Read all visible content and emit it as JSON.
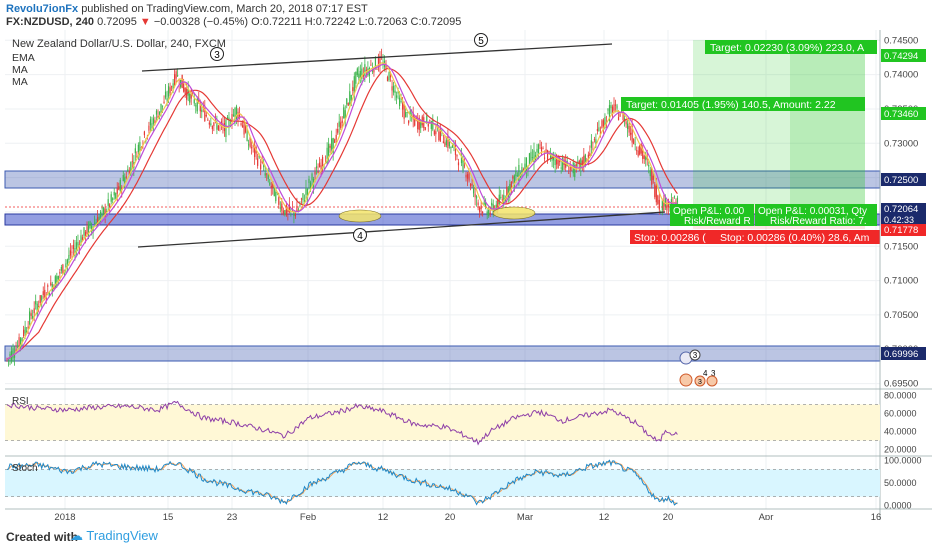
{
  "header": {
    "author": "Revolu7ionFx",
    "published": "published on TradingView.com, March 20, 2018 07:17 EST",
    "symbol": "FX:NZDUSD, 240",
    "last": "0.72095",
    "change": "−0.00328 (−0.45%)",
    "ohlc": "O:0.72211 H:0.72242 L:0.72063 C:0.72095"
  },
  "legend": {
    "title": "New Zealand Dollar/U.S. Dollar, 240, FXCM",
    "ema": "EMA",
    "ma1": "MA",
    "ma2": "MA"
  },
  "colors": {
    "up": "#3cb44b",
    "down": "#e53935",
    "ema": "#e53935",
    "ma_fast": "#c04bd9",
    "ma_mid": "#f2c94c",
    "zone": "#3b5ab0",
    "target": "#21c521",
    "stop": "#f02828",
    "rsi_line": "#8e3fa8",
    "stoch_k": "#1e88c8",
    "stoch_d": "#f7a35c"
  },
  "annotations": {
    "wave3": "3",
    "wave4": "4",
    "wave5": "5",
    "target1": "Target: 0.02230 (3.09%) 223.0, A",
    "target2": "Target: 0.01405 (1.95%) 140.5, Amount: 2.22",
    "open_pl1": "Open P&L: 0.00",
    "rr1": "Risk/Reward R",
    "open_pl2": "Open P&L: 0.00031, Qty",
    "rr2": "Risk/Reward Ratio: 7.",
    "stop1": "Stop: 0.00286 (",
    "stop2": "Stop: 0.00286 (0.40%) 28.6, Am",
    "event1": "3",
    "event2": "4",
    "event3": "3",
    "event4": "3"
  },
  "price_badges": {
    "p1": "0.74294",
    "p2": "0.73460",
    "p3": "0.72500",
    "p4": "0.72064",
    "p5": "0.42:33",
    "p6": "0.71778",
    "p7": "0.69996"
  },
  "indicators": {
    "rsi_label": "RSI",
    "stoch_label": "Stoch"
  },
  "footer": {
    "created": "Created with",
    "brand": "TradingView"
  },
  "chart_data": {
    "type": "line",
    "main": {
      "y_ticks": [
        0.745,
        0.74,
        0.735,
        0.73,
        0.725,
        0.72,
        0.715,
        0.71,
        0.705,
        0.7,
        0.695
      ],
      "y_tick_labels": [
        "0.74500",
        "0.74000",
        "0.73500",
        "0.73000",
        "0.72500",
        "0.72000",
        "0.71500",
        "0.71000",
        "0.70500",
        "0.70000",
        "0.69500"
      ],
      "ylim": [
        0.6945,
        0.7465
      ],
      "x_tick_labels": [
        "2018",
        "15",
        "23",
        "Feb",
        "12",
        "20",
        "Mar",
        "12",
        "20",
        "Apr",
        "16"
      ],
      "close_anchors": [
        [
          0,
          0.6985
        ],
        [
          8,
          0.701
        ],
        [
          16,
          0.705
        ],
        [
          24,
          0.708
        ],
        [
          32,
          0.71
        ],
        [
          40,
          0.713
        ],
        [
          48,
          0.716
        ],
        [
          56,
          0.718
        ],
        [
          64,
          0.72
        ],
        [
          72,
          0.7225
        ],
        [
          80,
          0.726
        ],
        [
          88,
          0.73
        ],
        [
          96,
          0.733
        ],
        [
          104,
          0.736
        ],
        [
          112,
          0.74
        ],
        [
          120,
          0.737
        ],
        [
          128,
          0.735
        ],
        [
          136,
          0.733
        ],
        [
          144,
          0.732
        ],
        [
          152,
          0.735
        ],
        [
          160,
          0.73
        ],
        [
          168,
          0.727
        ],
        [
          176,
          0.723
        ],
        [
          184,
          0.72
        ],
        [
          192,
          0.72
        ],
        [
          200,
          0.724
        ],
        [
          208,
          0.727
        ],
        [
          216,
          0.73
        ],
        [
          224,
          0.735
        ],
        [
          232,
          0.74
        ],
        [
          240,
          0.741
        ],
        [
          248,
          0.742
        ],
        [
          256,
          0.738
        ],
        [
          264,
          0.734
        ],
        [
          272,
          0.733
        ],
        [
          280,
          0.733
        ],
        [
          288,
          0.731
        ],
        [
          296,
          0.729
        ],
        [
          304,
          0.726
        ],
        [
          312,
          0.721
        ],
        [
          320,
          0.72
        ],
        [
          328,
          0.722
        ],
        [
          336,
          0.725
        ],
        [
          344,
          0.727
        ],
        [
          352,
          0.729
        ],
        [
          360,
          0.728
        ],
        [
          368,
          0.727
        ],
        [
          376,
          0.726
        ],
        [
          384,
          0.728
        ],
        [
          392,
          0.732
        ],
        [
          400,
          0.735
        ],
        [
          408,
          0.734
        ],
        [
          416,
          0.73
        ],
        [
          424,
          0.727
        ],
        [
          432,
          0.721
        ],
        [
          440,
          0.7215
        ],
        [
          444,
          0.721
        ]
      ]
    },
    "rsi": {
      "y_ticks": [
        80,
        60,
        40,
        20
      ],
      "y_tick_labels": [
        "80.0000",
        "60.0000",
        "40.0000",
        "20.0000"
      ],
      "ylim": [
        15,
        85
      ],
      "band": [
        30,
        70
      ],
      "anchors": [
        [
          0,
          70
        ],
        [
          20,
          66
        ],
        [
          40,
          64
        ],
        [
          60,
          67
        ],
        [
          80,
          68
        ],
        [
          100,
          64
        ],
        [
          112,
          72
        ],
        [
          130,
          55
        ],
        [
          150,
          50
        ],
        [
          170,
          42
        ],
        [
          184,
          35
        ],
        [
          200,
          55
        ],
        [
          220,
          62
        ],
        [
          232,
          68
        ],
        [
          248,
          63
        ],
        [
          270,
          48
        ],
        [
          290,
          45
        ],
        [
          304,
          35
        ],
        [
          312,
          28
        ],
        [
          320,
          40
        ],
        [
          336,
          55
        ],
        [
          352,
          62
        ],
        [
          368,
          52
        ],
        [
          384,
          58
        ],
        [
          400,
          64
        ],
        [
          416,
          50
        ],
        [
          426,
          35
        ],
        [
          432,
          28
        ],
        [
          436,
          42
        ],
        [
          444,
          36
        ]
      ]
    },
    "stoch": {
      "y_ticks": [
        100,
        50,
        0
      ],
      "y_tick_labels": [
        "100.0000",
        "50.0000",
        "0.0000"
      ],
      "ylim": [
        -5,
        105
      ],
      "band": [
        20,
        80
      ],
      "anchors": [
        [
          0,
          85
        ],
        [
          20,
          90
        ],
        [
          40,
          75
        ],
        [
          60,
          92
        ],
        [
          80,
          85
        ],
        [
          100,
          80
        ],
        [
          112,
          95
        ],
        [
          130,
          60
        ],
        [
          150,
          40
        ],
        [
          170,
          25
        ],
        [
          184,
          8
        ],
        [
          200,
          45
        ],
        [
          220,
          75
        ],
        [
          232,
          95
        ],
        [
          248,
          80
        ],
        [
          270,
          55
        ],
        [
          290,
          40
        ],
        [
          304,
          25
        ],
        [
          312,
          5
        ],
        [
          320,
          20
        ],
        [
          336,
          55
        ],
        [
          352,
          75
        ],
        [
          368,
          65
        ],
        [
          384,
          85
        ],
        [
          400,
          95
        ],
        [
          416,
          70
        ],
        [
          426,
          30
        ],
        [
          432,
          8
        ],
        [
          436,
          18
        ],
        [
          444,
          5
        ]
      ]
    },
    "grid": true
  }
}
